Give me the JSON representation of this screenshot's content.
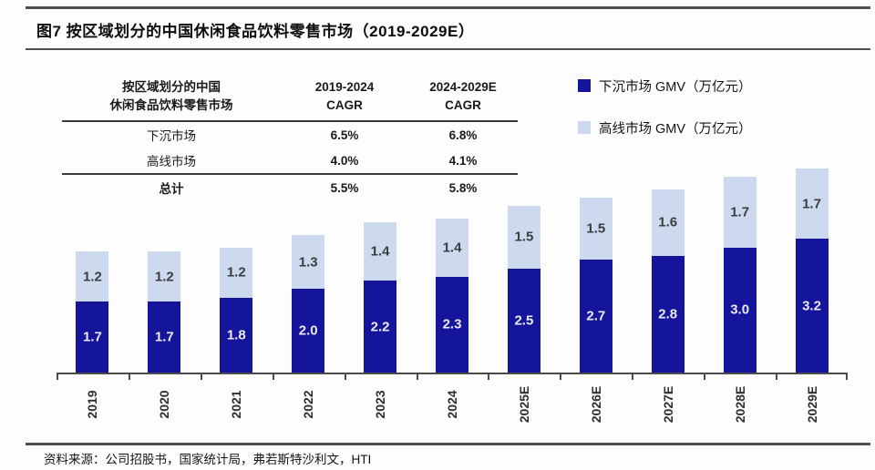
{
  "title": "图7 按区域划分的中国休闲食品饮料零售市场（2019-2029E）",
  "table": {
    "header": {
      "col1_line1": "按区域划分的中国",
      "col1_line2": "休闲食品饮料零售市场",
      "col2_line1": "2019-2024",
      "col2_line2": "CAGR",
      "col3_line1": "2024-2029E",
      "col3_line2": "CAGR"
    },
    "rows": [
      {
        "label": "下沉市场",
        "cagr_2019_2024": "6.5%",
        "cagr_2024_2029": "6.8%"
      },
      {
        "label": "高线市场",
        "cagr_2019_2024": "4.0%",
        "cagr_2024_2029": "4.1%"
      }
    ],
    "total": {
      "label": "总计",
      "cagr_2019_2024": "5.5%",
      "cagr_2024_2029": "5.8%"
    }
  },
  "legend": [
    {
      "label": "下沉市场 GMV（万亿元）",
      "color": "#15159b"
    },
    {
      "label": "高线市场 GMV（万亿元）",
      "color": "#ccd9ee"
    }
  ],
  "chart_data": {
    "type": "bar",
    "stacked": true,
    "categories": [
      "2019",
      "2020",
      "2021",
      "2022",
      "2023",
      "2024",
      "2025E",
      "2026E",
      "2027E",
      "2028E",
      "2029E"
    ],
    "series": [
      {
        "name": "下沉市场 GMV（万亿元）",
        "color": "#15159b",
        "values": [
          1.7,
          1.7,
          1.8,
          2.0,
          2.2,
          2.3,
          2.5,
          2.7,
          2.8,
          3.0,
          3.2
        ]
      },
      {
        "name": "高线市场 GMV（万亿元）",
        "color": "#ccd9ee",
        "values": [
          1.2,
          1.2,
          1.2,
          1.3,
          1.4,
          1.4,
          1.5,
          1.5,
          1.6,
          1.7,
          1.7
        ]
      }
    ],
    "title": "按区域划分的中国休闲食品饮料零售市场（2019-2029E）",
    "xlabel": "",
    "ylabel": "GMV（万亿元）",
    "ylim": [
      0,
      5.0
    ],
    "grid": false,
    "legend_position": "top-right",
    "data_labels": true
  },
  "source": "资料来源：公司招股书，国家统计局，弗若斯特沙利文，HTI"
}
